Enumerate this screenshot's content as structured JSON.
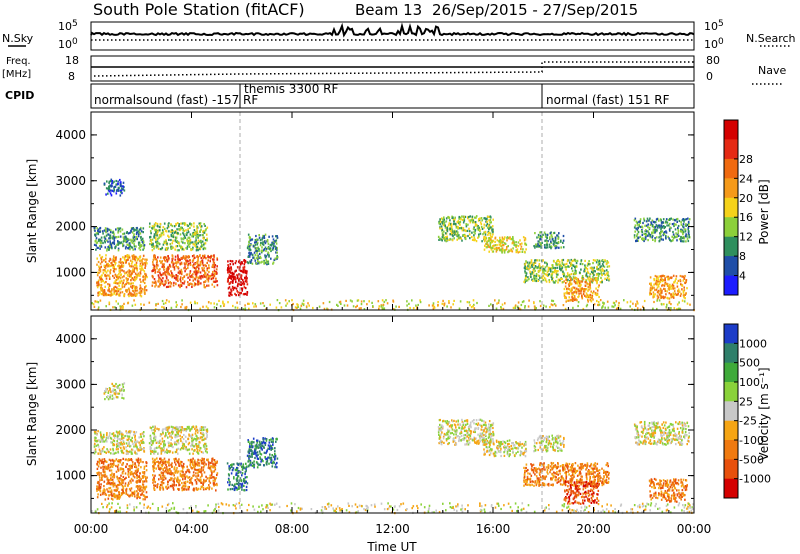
{
  "header": {
    "station": "South Pole Station (fitACF)",
    "beam": "Beam 13",
    "dates": "26/Sep/2015 - 27/Sep/2015"
  },
  "left_labels": {
    "nsky": "N.Sky",
    "freq": "Freq.",
    "freq_unit": "[MHz]",
    "cpid": "CPID"
  },
  "right_labels": {
    "nsearch": "N.Search",
    "nave": "Nave"
  },
  "noise_panel": {
    "left_ticks": [
      "10^5",
      "10^0"
    ],
    "right_ticks": [
      "10^5",
      "10^0"
    ]
  },
  "freq_panel": {
    "left_ticks": [
      "18",
      "8"
    ],
    "right_ticks": [
      "80",
      "0"
    ]
  },
  "cpid_panel": {
    "modes": [
      {
        "label": "normalsound (fast) -157 RF",
        "start_hour": 0,
        "end_hour": 6.0
      },
      {
        "label": "themis 3300 RF",
        "start_hour": 6.0,
        "end_hour": 18.0
      },
      {
        "label": "normal (fast) 151 RF",
        "start_hour": 18.0,
        "end_hour": 24.0
      }
    ]
  },
  "x_axis": {
    "label": "Time UT",
    "ticks": [
      "00:00",
      "04:00",
      "08:00",
      "12:00",
      "16:00",
      "20:00",
      "00:00"
    ],
    "range_hours": [
      0,
      24
    ]
  },
  "chart_data": [
    {
      "type": "heatmap",
      "quantity": "power",
      "ylabel": "Slant Range [km]",
      "y_ticks": [
        "1000",
        "2000",
        "3000",
        "4000"
      ],
      "ylim": [
        180,
        4500
      ],
      "colorbar": {
        "label": "Power [dB]",
        "ticks": [
          "4",
          "8",
          "12",
          "16",
          "20",
          "24",
          "28"
        ],
        "colors": [
          "#1c1cff",
          "#1f4ea8",
          "#2f8f5e",
          "#8ccf3a",
          "#f5d21a",
          "#f59a1a",
          "#f06a10",
          "#e52a14",
          "#d40000"
        ]
      },
      "echo_regions": [
        {
          "x0": 0.5,
          "x1": 1.3,
          "y0": 2700,
          "y1": 3050,
          "level": 1
        },
        {
          "x0": 0.1,
          "x1": 2.1,
          "y0": 1500,
          "y1": 2000,
          "level": 2
        },
        {
          "x0": 2.3,
          "x1": 4.6,
          "y0": 1500,
          "y1": 2100,
          "level": 3
        },
        {
          "x0": 0.2,
          "x1": 2.2,
          "y0": 500,
          "y1": 1400,
          "level": 5
        },
        {
          "x0": 2.4,
          "x1": 5.0,
          "y0": 700,
          "y1": 1400,
          "level": 6
        },
        {
          "x0": 5.4,
          "x1": 6.2,
          "y0": 500,
          "y1": 1300,
          "level": 8
        },
        {
          "x0": 6.2,
          "x1": 7.4,
          "y0": 1200,
          "y1": 1850,
          "level": 2
        },
        {
          "x0": 13.8,
          "x1": 16.0,
          "y0": 1700,
          "y1": 2250,
          "level": 3
        },
        {
          "x0": 15.6,
          "x1": 17.3,
          "y0": 1450,
          "y1": 1800,
          "level": 4
        },
        {
          "x0": 17.6,
          "x1": 18.8,
          "y0": 1550,
          "y1": 1900,
          "level": 2
        },
        {
          "x0": 21.6,
          "x1": 23.8,
          "y0": 1700,
          "y1": 2200,
          "level": 2
        },
        {
          "x0": 17.2,
          "x1": 20.6,
          "y0": 800,
          "y1": 1300,
          "level": 3
        },
        {
          "x0": 18.8,
          "x1": 20.2,
          "y0": 400,
          "y1": 900,
          "level": 5
        },
        {
          "x0": 22.2,
          "x1": 23.7,
          "y0": 450,
          "y1": 950,
          "level": 5
        },
        {
          "x0": 0.0,
          "x1": 24.0,
          "y0": 200,
          "y1": 420,
          "level": 4
        }
      ]
    },
    {
      "type": "heatmap",
      "quantity": "velocity",
      "ylabel": "Slant Range [km]",
      "y_ticks": [
        "1000",
        "2000",
        "3000",
        "4000"
      ],
      "ylim": [
        180,
        4500
      ],
      "colorbar": {
        "label": "Velocity [m s⁻¹]",
        "ticks": [
          "1000",
          "500",
          "100",
          "25",
          "-25",
          "-100",
          "-500",
          "-1000"
        ],
        "colors": [
          "#1c3cc8",
          "#2f7f6a",
          "#3faa3a",
          "#8ad23a",
          "#c8c8c8",
          "#f5a514",
          "#f07a10",
          "#e8500c",
          "#d40000"
        ]
      },
      "echo_regions": [
        {
          "x0": 0.5,
          "x1": 1.3,
          "y0": 2700,
          "y1": 3050,
          "level": 4
        },
        {
          "x0": 0.1,
          "x1": 2.1,
          "y0": 1500,
          "y1": 2000,
          "level": 4
        },
        {
          "x0": 2.3,
          "x1": 4.6,
          "y0": 1500,
          "y1": 2100,
          "level": 4
        },
        {
          "x0": 0.2,
          "x1": 2.2,
          "y0": 500,
          "y1": 1400,
          "level": 6
        },
        {
          "x0": 2.4,
          "x1": 5.0,
          "y0": 700,
          "y1": 1400,
          "level": 6
        },
        {
          "x0": 5.4,
          "x1": 6.2,
          "y0": 700,
          "y1": 1300,
          "level": 1
        },
        {
          "x0": 6.2,
          "x1": 7.4,
          "y0": 1200,
          "y1": 1850,
          "level": 1
        },
        {
          "x0": 13.8,
          "x1": 16.0,
          "y0": 1700,
          "y1": 2250,
          "level": 4
        },
        {
          "x0": 15.6,
          "x1": 17.3,
          "y0": 1450,
          "y1": 1800,
          "level": 4
        },
        {
          "x0": 17.6,
          "x1": 18.8,
          "y0": 1550,
          "y1": 1900,
          "level": 4
        },
        {
          "x0": 21.6,
          "x1": 23.8,
          "y0": 1700,
          "y1": 2200,
          "level": 4
        },
        {
          "x0": 17.2,
          "x1": 20.6,
          "y0": 800,
          "y1": 1300,
          "level": 6
        },
        {
          "x0": 18.8,
          "x1": 20.2,
          "y0": 400,
          "y1": 900,
          "level": 7
        },
        {
          "x0": 22.2,
          "x1": 23.7,
          "y0": 450,
          "y1": 950,
          "level": 6
        },
        {
          "x0": 0.0,
          "x1": 24.0,
          "y0": 200,
          "y1": 420,
          "level": 4
        }
      ]
    }
  ]
}
